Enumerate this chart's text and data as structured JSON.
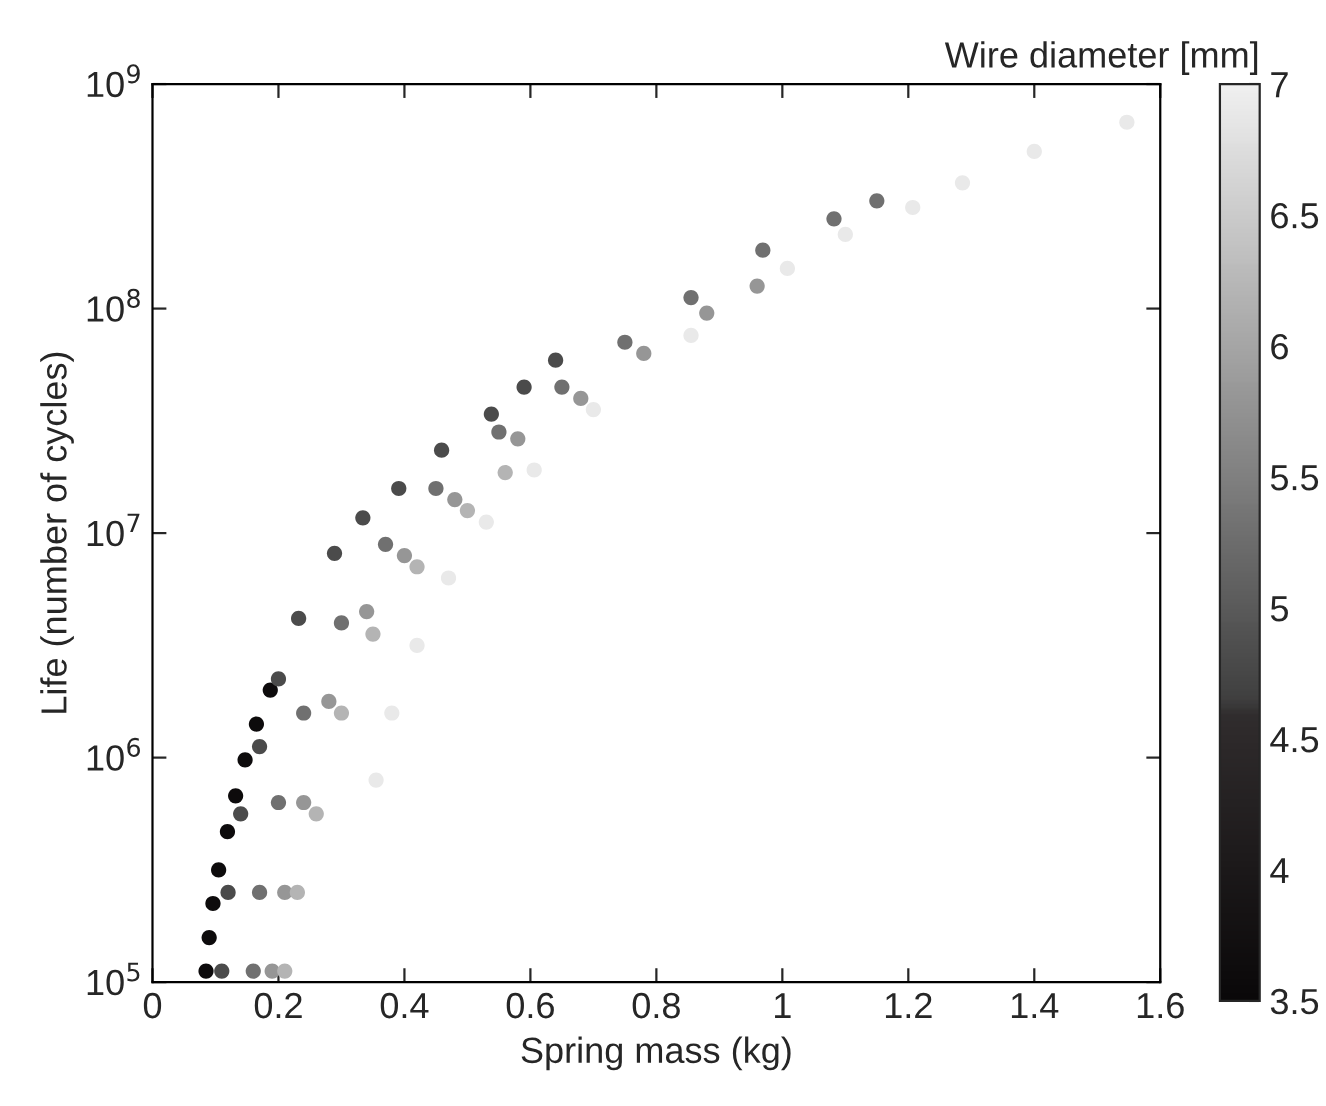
{
  "chart_data": {
    "type": "scatter",
    "xlabel": "Spring mass (kg)",
    "ylabel": "Life (number of cycles)",
    "clabel": "Wire diameter [mm]",
    "xlim": [
      0,
      1.6
    ],
    "xticks": [
      0,
      0.2,
      0.4,
      0.6,
      0.8,
      1,
      1.2,
      1.4,
      1.6
    ],
    "log": "y",
    "ylim": [
      100000.0,
      1000000000.0
    ],
    "yticks": [
      {
        "value": 100000.0,
        "label": "10$^{5}$"
      },
      {
        "value": 1000000.0,
        "label": "10$^{6}$"
      },
      {
        "value": 10000000.0,
        "label": "10$^{7}$"
      },
      {
        "value": 100000000.0,
        "label": "10$^{8}$"
      },
      {
        "value": 1000000000.0,
        "label": "10$^{9}$"
      }
    ],
    "clim": [
      3.5,
      7
    ],
    "cticks": [
      3.5,
      4,
      4.5,
      5,
      5.5,
      6,
      6.5,
      7
    ],
    "marker": "circle",
    "grid": false,
    "legend": false,
    "series": [
      {
        "x": [
          0.085,
          0.09,
          0.096,
          0.105,
          0.119,
          0.132,
          0.147,
          0.165,
          0.187
        ],
        "values": [
          112000.0,
          158000.0,
          224000.0,
          316000.0,
          468000.0,
          676000.0,
          977000.0,
          1410000.0,
          2000000.0
        ],
        "cvalues": [
          3.6,
          3.6,
          3.6,
          3.6,
          3.6,
          3.6,
          3.6,
          3.6,
          3.6
        ]
      },
      {
        "x": [
          0.11,
          0.12,
          0.14,
          0.17,
          0.2,
          0.232,
          0.289,
          0.334,
          0.391,
          0.459,
          0.538,
          0.59,
          0.64
        ],
        "values": [
          112000.0,
          251000.0,
          562000.0,
          1120000.0,
          2240000.0,
          4170000.0,
          8130000.0,
          11700000.0,
          15800000.0,
          23400000.0,
          33900000.0,
          44700000.0,
          58900000.0
        ],
        "cvalues": [
          4.8,
          4.8,
          4.8,
          4.8,
          4.8,
          4.8,
          4.8,
          4.8,
          4.8,
          4.8,
          4.8,
          4.8,
          4.8
        ]
      },
      {
        "x": [
          0.16,
          0.17,
          0.2,
          0.24,
          0.3,
          0.37,
          0.45,
          0.55,
          0.65,
          0.75,
          0.855,
          0.969,
          1.082,
          1.15
        ],
        "values": [
          112000.0,
          251000.0,
          631000.0,
          1580000.0,
          3980000.0,
          8910000.0,
          15800000.0,
          28200000.0,
          44700000.0,
          70800000.0,
          112000000.0,
          182000000.0,
          251000000.0,
          302000000.0
        ],
        "cvalues": [
          5.3,
          5.3,
          5.3,
          5.3,
          5.3,
          5.3,
          5.3,
          5.3,
          5.3,
          5.3,
          5.3,
          5.3,
          5.3,
          5.3
        ]
      },
      {
        "x": [
          0.19,
          0.21,
          0.24,
          0.28,
          0.34,
          0.4,
          0.48,
          0.58,
          0.68,
          0.78,
          0.88,
          0.96
        ],
        "values": [
          112000.0,
          251000.0,
          631000.0,
          1780000.0,
          4470000.0,
          7940000.0,
          14100000.0,
          26300000.0,
          39800000.0,
          63100000.0,
          95500000.0,
          126000000.0
        ],
        "cvalues": [
          5.8,
          5.8,
          5.8,
          5.8,
          5.8,
          5.8,
          5.8,
          5.8,
          5.8,
          5.8,
          5.8,
          5.8
        ]
      },
      {
        "x": [
          0.21,
          0.23,
          0.26,
          0.3,
          0.35,
          0.42,
          0.5,
          0.56
        ],
        "values": [
          112000.0,
          251000.0,
          562000.0,
          1580000.0,
          3550000.0,
          7080000.0,
          12600000.0,
          18600000.0
        ],
        "cvalues": [
          6.2,
          6.2,
          6.2,
          6.2,
          6.2,
          6.2,
          6.2,
          6.2
        ]
      },
      {
        "x": [
          0.355,
          0.38,
          0.42,
          0.47,
          0.53,
          0.606,
          0.7,
          0.855,
          1.008,
          1.1,
          1.207,
          1.286,
          1.4,
          1.547
        ],
        "values": [
          794000.0,
          1580000.0,
          3160000.0,
          6310000.0,
          11200000.0,
          19100000.0,
          35500000.0,
          75900000.0,
          151000000.0,
          214000000.0,
          282000000.0,
          363000000.0,
          501000000.0,
          676000000.0
        ],
        "cvalues": [
          6.9,
          6.9,
          6.9,
          6.9,
          6.9,
          6.9,
          6.9,
          6.9,
          6.9,
          6.9,
          6.9,
          6.9,
          6.9,
          6.9
        ]
      }
    ]
  }
}
